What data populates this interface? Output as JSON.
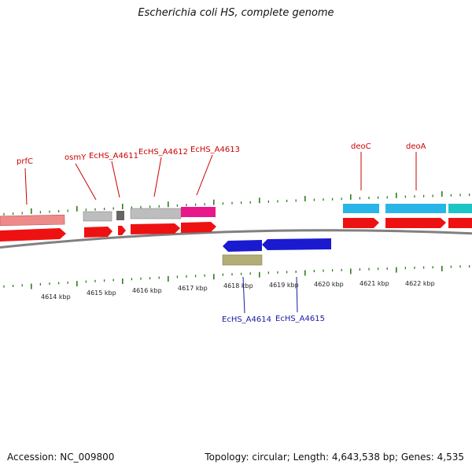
{
  "title": "Escherichia coli HS, complete genome",
  "footer": {
    "accession": "Accession: NC_009800",
    "genome_info": "Topology: circular; Length: 4,643,538 bp; Genes: 4,535"
  },
  "scale": {
    "unit": "kbp",
    "labels": [
      "4614 kbp",
      "4615 kbp",
      "4616 kbp",
      "4617 kbp",
      "4618 kbp",
      "4619 kbp",
      "4620 kbp",
      "4621 kbp",
      "4622 kbp"
    ]
  },
  "genes_forward": [
    {
      "label": "prfC"
    },
    {
      "label": "osmY"
    },
    {
      "label": "EcHS_A4611"
    },
    {
      "label": "EcHS_A4612"
    },
    {
      "label": "EcHS_A4613"
    },
    {
      "label": "deoC"
    },
    {
      "label": "deoA"
    }
  ],
  "genes_reverse": [
    {
      "label": "EcHS_A4614"
    },
    {
      "label": "EcHS_A4615"
    }
  ],
  "colors": {
    "forward_cds": "#ee1111",
    "reverse_cds": "#1a1ad0",
    "label_forward": "#cc0000",
    "label_reverse": "#1a1aa0",
    "ticks": "#2e7d1e",
    "backbone": "#808080",
    "feature_pink": "#ee8a8a",
    "feature_gray": "#bdbdbd",
    "feature_darkgray": "#666666",
    "feature_magenta": "#e8188a",
    "feature_cyan": "#29b5e8",
    "feature_teal": "#1cc5c5",
    "feature_olive": "#b3ad78"
  }
}
